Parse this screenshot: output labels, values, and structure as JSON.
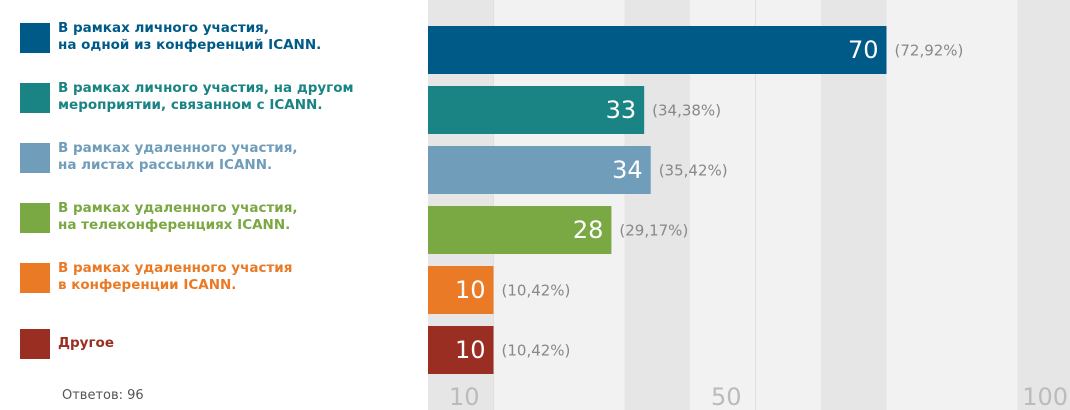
{
  "chart_data": {
    "type": "bar",
    "orientation": "horizontal",
    "categories": [
      "В рамках личного участия,\nна одной из конференций ICANN.",
      "В рамках личного участия, на другом\nмероприятии, связанном с ICANN.",
      "В рамках удаленного участия,\nна листах рассылки ICANN.",
      "В рамках удаленного участия,\nна телеконференциях ICANN.",
      "В рамках удаленного участия\nв конференции ICANN.",
      "Другое"
    ],
    "values": [
      70,
      33,
      34,
      28,
      10,
      10
    ],
    "percent_labels": [
      "(72,92%)",
      "(34,38%)",
      "(35,42%)",
      "(29,17%)",
      "(10,42%)",
      "(10,42%)"
    ],
    "colors": [
      "#005a87",
      "#1a8383",
      "#6f9dba",
      "#7aa843",
      "#ea7a26",
      "#9a2e22"
    ],
    "xlim": [
      0,
      100
    ],
    "xticks": [
      10,
      50,
      100
    ],
    "grid": true,
    "footnote": "Ответов: 96"
  }
}
